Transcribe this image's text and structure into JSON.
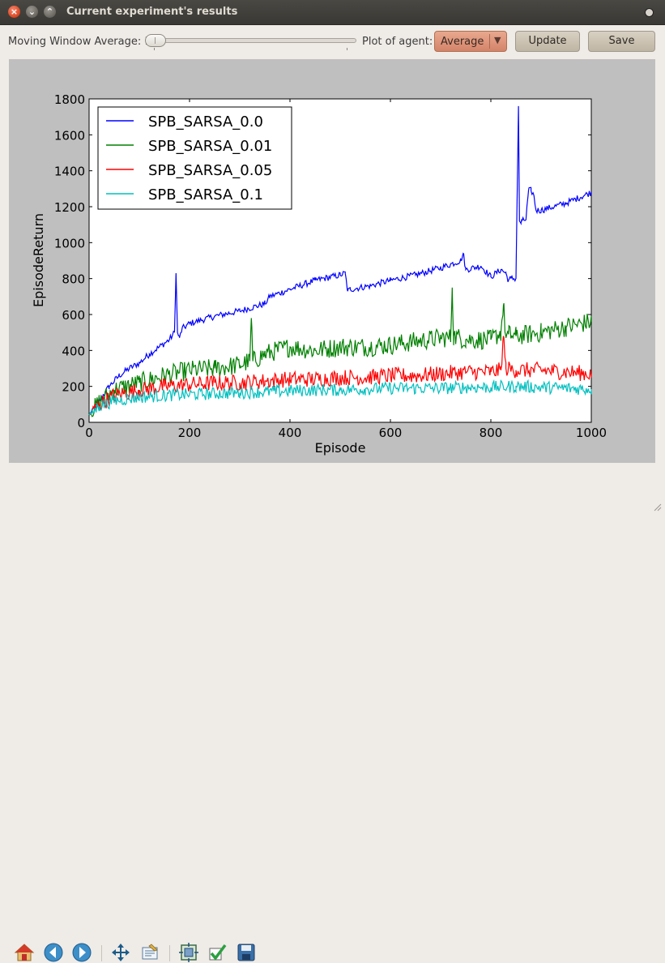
{
  "window": {
    "title": "Current experiment's results"
  },
  "controls": {
    "moving_window_label": "Moving Window Average: 1",
    "moving_window_value": 1,
    "plot_of_agent_label": "Plot of agent:",
    "agent_selected": "Average",
    "update_label": "Update",
    "save_label": "Save"
  },
  "nav_icons": [
    "home-icon",
    "back-icon",
    "forward-icon",
    "pan-icon",
    "configure-subplots-icon",
    "edit-axes-icon",
    "apply-icon",
    "save-figure-icon"
  ],
  "colors": {
    "blue": "#0000ff",
    "green": "#008000",
    "red": "#ff0000",
    "cyan": "#00bfbf",
    "canvas_bg": "#bfbfbf"
  },
  "chart_data": {
    "type": "line",
    "title": "",
    "xlabel": "Episode",
    "ylabel": "EpisodeReturn",
    "xlim": [
      0,
      1000
    ],
    "ylim": [
      0,
      1800
    ],
    "xticks": [
      "0",
      "200",
      "400",
      "600",
      "800",
      "1000"
    ],
    "yticks": [
      "0",
      "200",
      "400",
      "600",
      "800",
      "1000",
      "1200",
      "1400",
      "1600",
      "1800"
    ],
    "legend_position": "upper-left",
    "grid": false,
    "series": [
      {
        "name": "SPB_SARSA_0.0",
        "color": "#0000ff",
        "noise": 18,
        "x": [
          0,
          20,
          40,
          60,
          80,
          100,
          120,
          140,
          160,
          170,
          173,
          176,
          180,
          185,
          200,
          250,
          300,
          350,
          360,
          400,
          450,
          500,
          510,
          515,
          520,
          560,
          600,
          650,
          700,
          740,
          745,
          750,
          780,
          800,
          820,
          830,
          835,
          840,
          850,
          855,
          857,
          860,
          862,
          870,
          875,
          880,
          885,
          890,
          900,
          950,
          1000
        ],
        "y": [
          40,
          120,
          200,
          260,
          300,
          330,
          380,
          420,
          460,
          500,
          830,
          500,
          470,
          520,
          550,
          590,
          620,
          660,
          700,
          740,
          790,
          820,
          830,
          730,
          740,
          760,
          790,
          820,
          860,
          900,
          940,
          850,
          870,
          810,
          850,
          830,
          790,
          800,
          800,
          1760,
          1120,
          1110,
          1120,
          1130,
          1290,
          1290,
          1270,
          1180,
          1180,
          1220,
          1280
        ]
      },
      {
        "name": "SPB_SARSA_0.01",
        "color": "#008000",
        "noise": 55,
        "x": [
          0,
          20,
          50,
          100,
          150,
          200,
          250,
          300,
          320,
          323,
          326,
          350,
          400,
          450,
          500,
          550,
          600,
          650,
          700,
          720,
          723,
          726,
          750,
          800,
          820,
          825,
          830,
          835,
          850,
          900,
          950,
          1000
        ],
        "y": [
          40,
          110,
          180,
          220,
          260,
          290,
          300,
          320,
          340,
          580,
          340,
          380,
          420,
          400,
          420,
          420,
          430,
          450,
          470,
          470,
          750,
          480,
          460,
          460,
          500,
          650,
          470,
          490,
          480,
          500,
          530,
          560
        ]
      },
      {
        "name": "SPB_SARSA_0.05",
        "color": "#ff0000",
        "noise": 45,
        "x": [
          0,
          20,
          50,
          100,
          150,
          200,
          250,
          300,
          350,
          400,
          450,
          500,
          550,
          600,
          650,
          700,
          750,
          800,
          820,
          825,
          830,
          850,
          900,
          950,
          1000
        ],
        "y": [
          40,
          100,
          150,
          180,
          200,
          210,
          220,
          220,
          230,
          240,
          240,
          250,
          250,
          260,
          260,
          270,
          280,
          280,
          290,
          480,
          300,
          290,
          290,
          280,
          270
        ]
      },
      {
        "name": "SPB_SARSA_0.1",
        "color": "#00bfbf",
        "noise": 35,
        "x": [
          0,
          20,
          50,
          100,
          150,
          200,
          250,
          300,
          350,
          400,
          450,
          500,
          550,
          600,
          650,
          700,
          750,
          800,
          850,
          900,
          950,
          1000
        ],
        "y": [
          40,
          90,
          120,
          140,
          150,
          155,
          160,
          165,
          170,
          175,
          180,
          180,
          185,
          190,
          190,
          190,
          195,
          195,
          200,
          195,
          190,
          185
        ]
      }
    ]
  }
}
